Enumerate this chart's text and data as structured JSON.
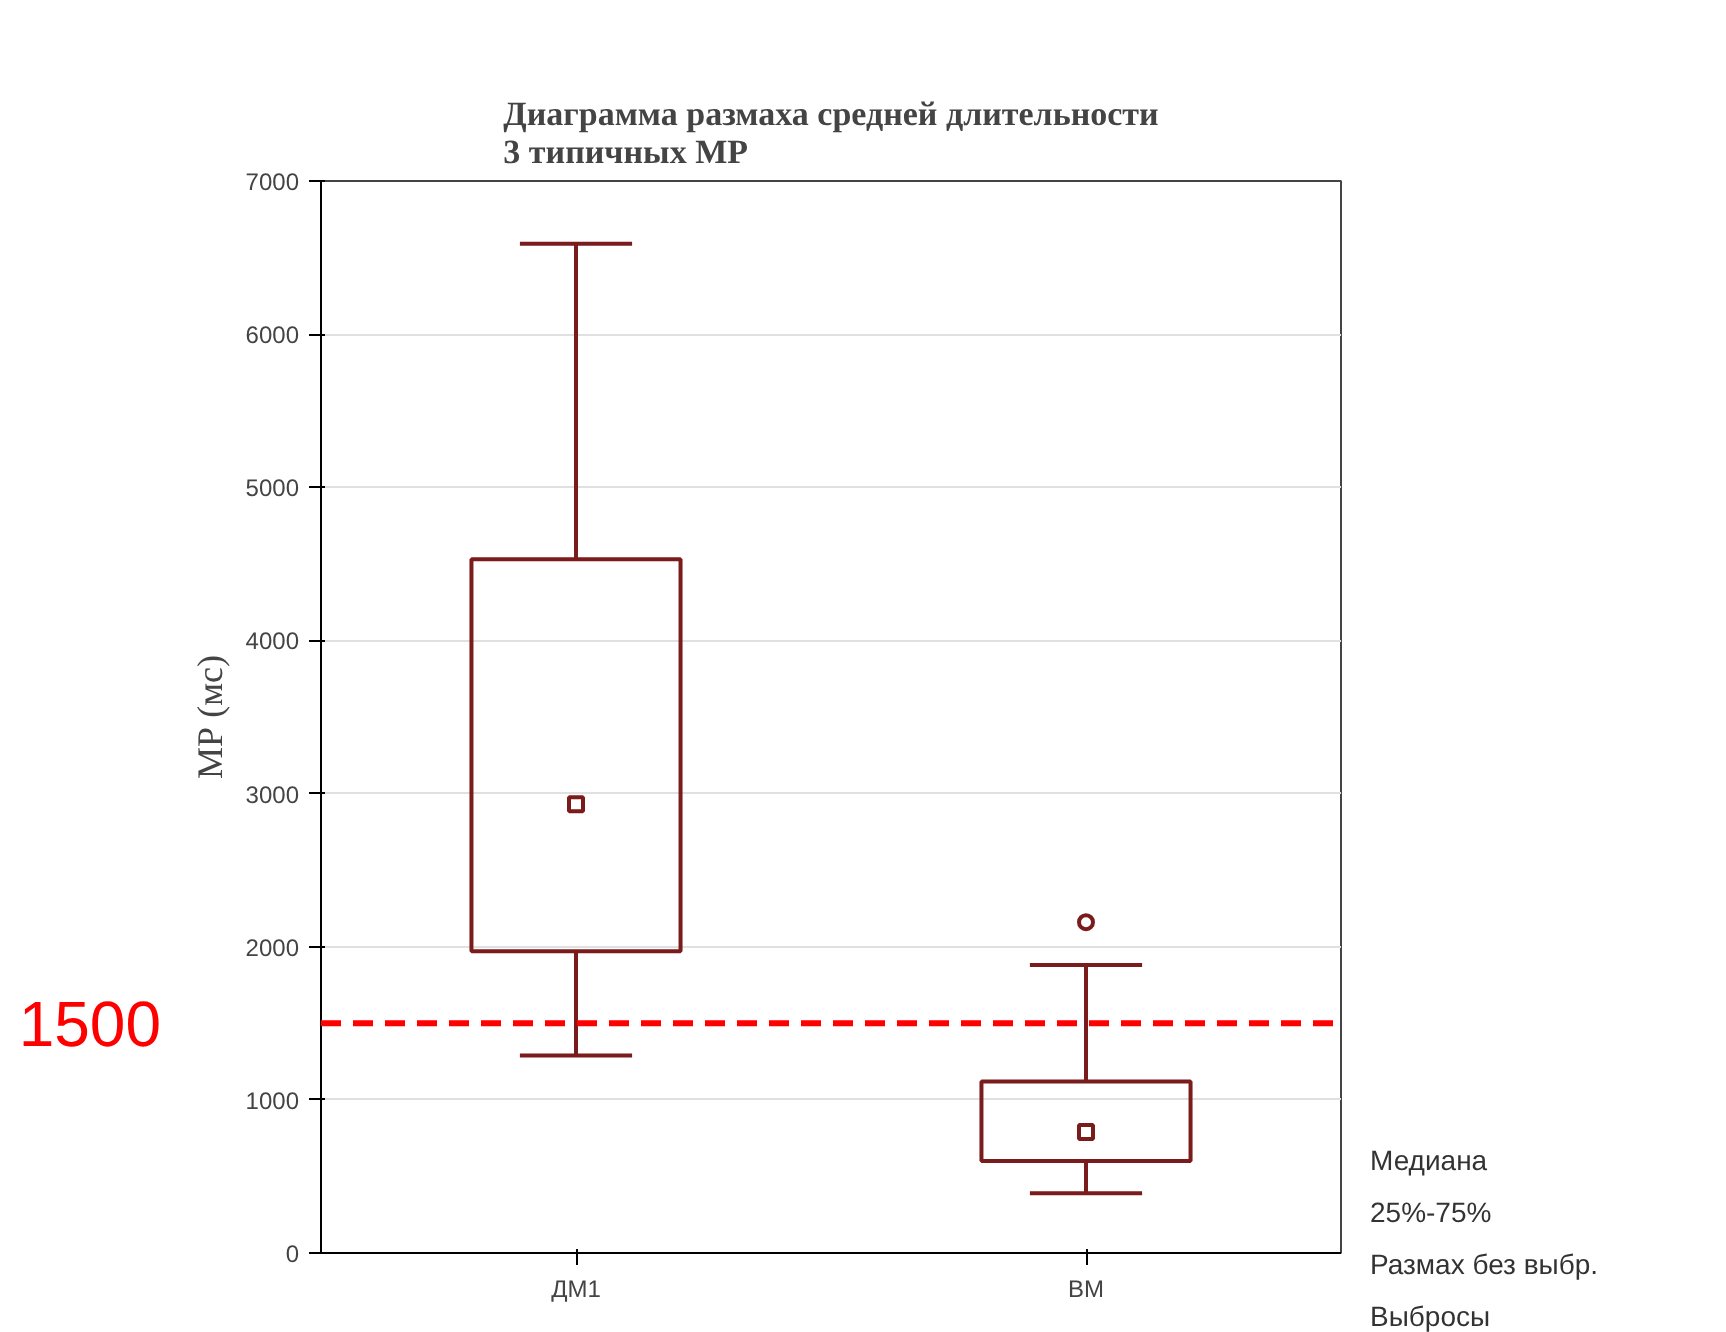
{
  "chart_data": {
    "type": "box",
    "title": "Диаграмма размаха средней длительности\n3 типичных МР",
    "ylabel": "МР (мс)",
    "categories": [
      "ДМ1",
      "ВМ"
    ],
    "boxes": [
      {
        "low": 1290,
        "q1": 1970,
        "median": 2930,
        "q3": 4530,
        "high": 6590
      },
      {
        "low": 390,
        "q1": 600,
        "median": 790,
        "q3": 1120,
        "high": 1880,
        "outliers": [
          2160
        ]
      }
    ],
    "color": "#7b1c1c",
    "ylim": [
      0,
      7000
    ],
    "yticks": [
      0,
      1000,
      2000,
      3000,
      4000,
      5000,
      6000,
      7000
    ],
    "grid": "y",
    "ref_lines": [
      {
        "axis": "y",
        "value": 1500,
        "label": "1500",
        "color": "#ff0000",
        "line_style": "dashed"
      }
    ],
    "annotations": [
      "Медиана",
      "25%-75%",
      "Размах без выбр.",
      "Выбросы"
    ]
  }
}
